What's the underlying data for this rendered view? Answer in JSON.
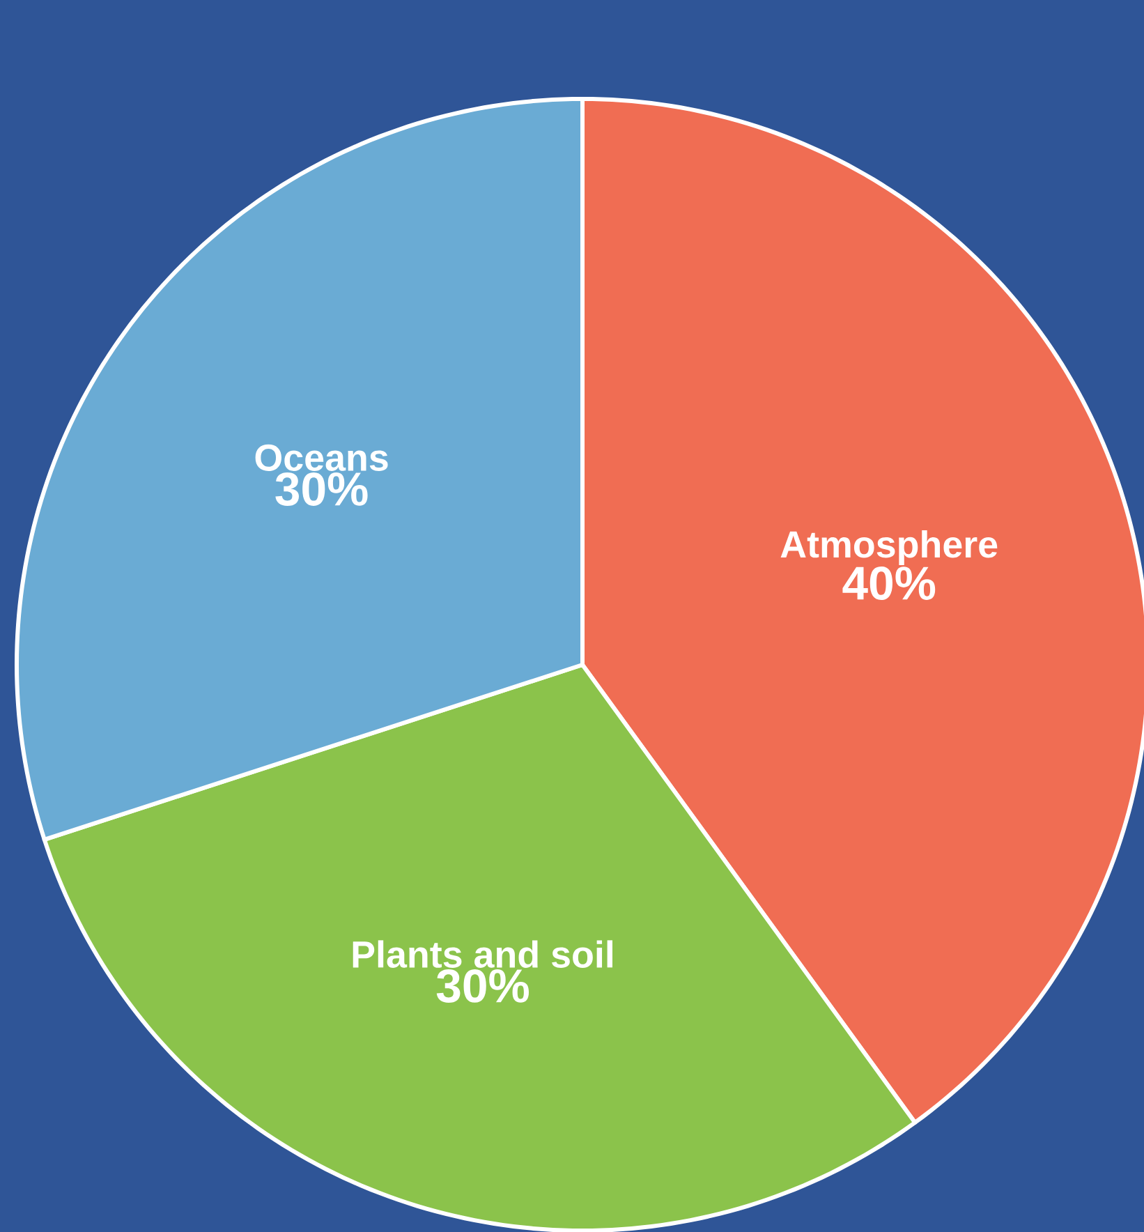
{
  "chart_data": {
    "type": "pie",
    "categories": [
      "Atmosphere",
      "Plants and soil",
      "Oceans"
    ],
    "values": [
      40,
      30,
      30
    ],
    "colors": [
      "#f06d53",
      "#8bc34b",
      "#6aabd4"
    ],
    "value_labels": [
      "40%",
      "30%",
      "30%"
    ]
  }
}
